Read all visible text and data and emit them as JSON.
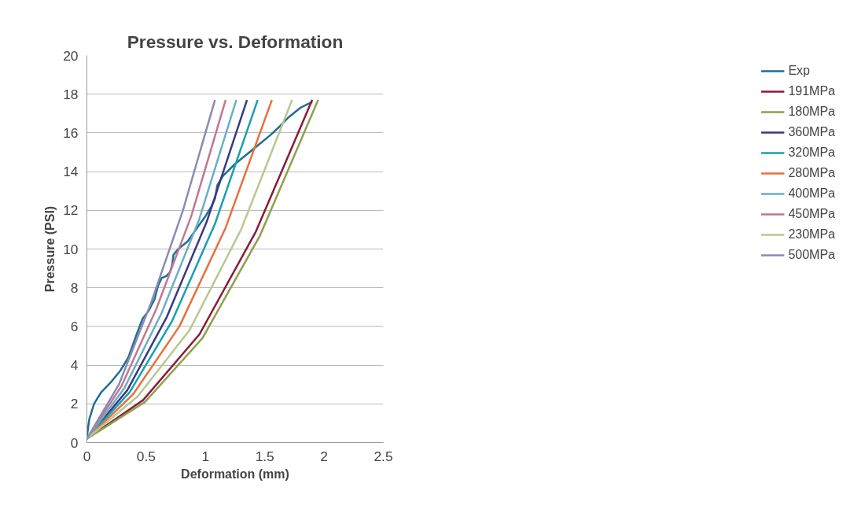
{
  "chart_data": {
    "type": "line",
    "title": "Pressure vs. Deformation",
    "xlabel": "Deformation (mm)",
    "ylabel": "Pressure (PSI)",
    "xlim": [
      0,
      2.5
    ],
    "xticks": [
      0,
      0.5,
      1,
      1.5,
      2,
      2.5
    ],
    "ylim": [
      0,
      20
    ],
    "yticks": [
      0,
      2,
      4,
      6,
      8,
      10,
      12,
      14,
      16,
      18,
      20
    ],
    "grid": "y",
    "legend": "right",
    "marker": "none",
    "line_style": "solid",
    "series": [
      {
        "name": "Exp",
        "color": "#1f6e95",
        "x": [
          0,
          0.02,
          0.06,
          0.12,
          0.2,
          0.28,
          0.35,
          0.42,
          0.47,
          0.52,
          0.57,
          0.6,
          0.63,
          0.67,
          0.7,
          0.72,
          0.73,
          0.77,
          0.85,
          0.93,
          1.0,
          1.05,
          1.08,
          1.1,
          1.15,
          1.25,
          1.35,
          1.45,
          1.55,
          1.62,
          1.7,
          1.8,
          1.9
        ],
        "values": [
          0.3,
          1.2,
          2.0,
          2.6,
          3.1,
          3.7,
          4.4,
          5.6,
          6.4,
          6.8,
          7.4,
          8.1,
          8.5,
          8.6,
          8.8,
          9.2,
          9.7,
          10.0,
          10.4,
          11.1,
          11.7,
          12.2,
          12.6,
          13.3,
          13.8,
          14.4,
          14.9,
          15.4,
          15.9,
          16.3,
          16.8,
          17.3,
          17.6
        ]
      },
      {
        "name": "191MPa",
        "color": "#8b1a3a",
        "x": [
          0,
          0.475,
          0.95,
          1.425,
          1.9
        ],
        "values": [
          0.2,
          2.2,
          5.6,
          10.9,
          17.7
        ]
      },
      {
        "name": "180MPa",
        "color": "#8fa04a",
        "x": [
          0,
          0.49,
          0.975,
          1.46,
          1.95
        ],
        "values": [
          0.2,
          2.1,
          5.4,
          10.7,
          17.7
        ]
      },
      {
        "name": "360MPa",
        "color": "#3a3a80",
        "x": [
          0,
          0.34,
          0.675,
          1.01,
          1.35
        ],
        "values": [
          0.2,
          2.7,
          6.5,
          11.4,
          17.7
        ]
      },
      {
        "name": "320MPa",
        "color": "#1aa0b0",
        "x": [
          0,
          0.36,
          0.72,
          1.08,
          1.44
        ],
        "values": [
          0.2,
          2.6,
          6.3,
          11.3,
          17.7
        ]
      },
      {
        "name": "280MPa",
        "color": "#e87040",
        "x": [
          0,
          0.39,
          0.78,
          1.17,
          1.56
        ],
        "values": [
          0.2,
          2.5,
          6.0,
          11.1,
          17.7
        ]
      },
      {
        "name": "400MPa",
        "color": "#6aaec8",
        "x": [
          0,
          0.315,
          0.63,
          0.945,
          1.26
        ],
        "values": [
          0.2,
          2.8,
          6.7,
          11.5,
          17.7
        ]
      },
      {
        "name": "450MPa",
        "color": "#c07890",
        "x": [
          0,
          0.29,
          0.585,
          0.88,
          1.17
        ],
        "values": [
          0.2,
          2.9,
          6.9,
          11.7,
          17.7
        ]
      },
      {
        "name": "230MPa",
        "color": "#b8c890",
        "x": [
          0,
          0.43,
          0.865,
          1.3,
          1.73
        ],
        "values": [
          0.2,
          2.4,
          5.8,
          11.0,
          17.7
        ]
      },
      {
        "name": "500MPa",
        "color": "#8a8ab8",
        "x": [
          0,
          0.27,
          0.54,
          0.81,
          1.08
        ],
        "values": [
          0.2,
          3.0,
          7.2,
          12.0,
          17.7
        ]
      }
    ]
  }
}
